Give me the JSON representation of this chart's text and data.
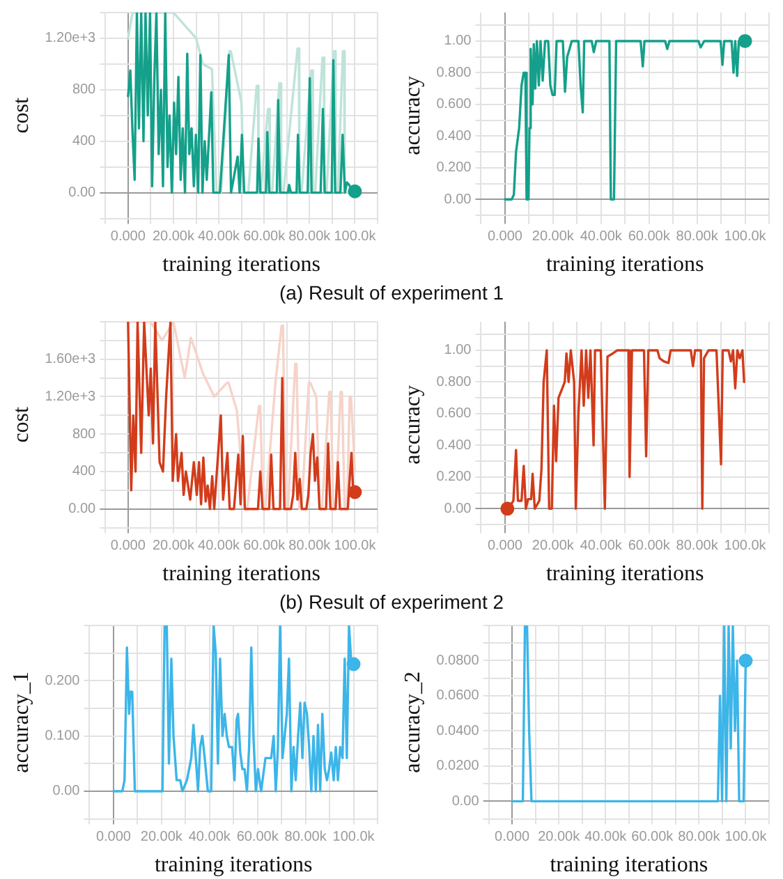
{
  "chart_data": [
    {
      "type": "line",
      "xlabel": "training iterations",
      "ylabel": "cost",
      "annotations": [
        "(a) Result of experiment 1"
      ],
      "grid": true,
      "xlim": [
        -10000,
        110000
      ],
      "xticks": [
        {
          "value": -10000,
          "label": null
        },
        {
          "value": 0,
          "label": "0.000"
        },
        {
          "value": 10000,
          "label": null
        },
        {
          "value": 20000,
          "label": "20.00k"
        },
        {
          "value": 30000,
          "label": null
        },
        {
          "value": 40000,
          "label": "40.00k"
        },
        {
          "value": 50000,
          "label": null
        },
        {
          "value": 60000,
          "label": "60.00k"
        },
        {
          "value": 70000,
          "label": null
        },
        {
          "value": 80000,
          "label": "80.00k"
        },
        {
          "value": 90000,
          "label": null
        },
        {
          "value": 100000,
          "label": "100.0k"
        },
        {
          "value": 110000,
          "label": null
        }
      ],
      "ylim": [
        -200,
        1400
      ],
      "yticks": [
        {
          "value": -200,
          "label": null
        },
        {
          "value": 0,
          "label": "0.00"
        },
        {
          "value": 200,
          "label": null
        },
        {
          "value": 400,
          "label": "400"
        },
        {
          "value": 600,
          "label": null
        },
        {
          "value": 800,
          "label": "800"
        },
        {
          "value": 1000,
          "label": null
        },
        {
          "value": 1200,
          "label": "1.20e+3"
        },
        {
          "value": 1400,
          "label": null
        }
      ],
      "series": [
        {
          "type": "line",
          "color": "#bfe3da",
          "x": [
            0,
            2000,
            5000,
            10000,
            15000,
            20000,
            25000,
            30000,
            33000,
            37000,
            39000,
            41000,
            44700,
            45300,
            50000,
            51000,
            53000,
            56700,
            57300,
            57500,
            58500,
            61700,
            62300,
            62500,
            63500,
            66700,
            67300,
            67500,
            68500,
            74700,
            75300,
            75500,
            76500,
            80700,
            81300,
            81500,
            82500,
            85700,
            86300,
            86500,
            87500,
            90700,
            91300,
            91500,
            92500,
            94700,
            95300,
            95500,
            96500,
            100000
          ],
          "values": [
            1200,
            1400,
            1400,
            1400,
            1400,
            1400,
            1300,
            1200,
            1000,
            960,
            0,
            0,
            1100,
            1100,
            700,
            0,
            0,
            830,
            830,
            0,
            0,
            650,
            650,
            0,
            0,
            850,
            850,
            0,
            0,
            1120,
            1120,
            0,
            0,
            950,
            950,
            0,
            0,
            1050,
            1050,
            0,
            0,
            1100,
            1100,
            0,
            0,
            1100,
            1100,
            0,
            0,
            10
          ]
        },
        {
          "type": "line",
          "color": "#14a08a",
          "x": [
            0,
            1000,
            1900,
            2900,
            3900,
            4800,
            5800,
            6800,
            7700,
            8700,
            9700,
            10600,
            11600,
            12500,
            13500,
            14500,
            15400,
            16400,
            17400,
            18300,
            19300,
            20300,
            21200,
            22200,
            23200,
            24100,
            25100,
            26100,
            27000,
            28000,
            29000,
            29900,
            30900,
            31900,
            32800,
            33800,
            34700,
            36700,
            37600,
            40500,
            44400,
            45400,
            48300,
            49200,
            50200,
            51200,
            56900,
            57500,
            58300,
            60800,
            61400,
            62200,
            65600,
            66200,
            67000,
            70500,
            71000,
            71800,
            74300,
            74900,
            75700,
            79200,
            80100,
            80900,
            84900,
            85900,
            86700,
            89800,
            90500,
            91300,
            93600,
            94600,
            95600,
            96500,
            97500,
            98500,
            100000
          ],
          "values": [
            750,
            950,
            500,
            100,
            1400,
            500,
            1400,
            400,
            1400,
            600,
            1400,
            50,
            900,
            1400,
            300,
            800,
            50,
            1400,
            200,
            600,
            0,
            700,
            300,
            900,
            100,
            500,
            0,
            1080,
            300,
            500,
            50,
            450,
            0,
            1070,
            0,
            400,
            100,
            780,
            0,
            0,
            1070,
            0,
            280,
            0,
            450,
            0,
            0,
            420,
            0,
            0,
            470,
            0,
            0,
            720,
            0,
            0,
            60,
            0,
            0,
            450,
            0,
            0,
            890,
            0,
            0,
            650,
            0,
            0,
            1030,
            0,
            0,
            450,
            0,
            80,
            60,
            20,
            10
          ]
        },
        {
          "type": "scatter",
          "marker": "circle",
          "color": "#14a08a",
          "x": [
            100000
          ],
          "values": [
            10
          ]
        }
      ]
    },
    {
      "type": "line",
      "xlabel": "training iterations",
      "ylabel": "accuracy",
      "grid": true,
      "xlim": [
        -10000,
        110000
      ],
      "xticks": [
        {
          "value": -10000,
          "label": null
        },
        {
          "value": 0,
          "label": "0.000"
        },
        {
          "value": 10000,
          "label": null
        },
        {
          "value": 20000,
          "label": "20.00k"
        },
        {
          "value": 30000,
          "label": null
        },
        {
          "value": 40000,
          "label": "40.00k"
        },
        {
          "value": 50000,
          "label": null
        },
        {
          "value": 60000,
          "label": "60.00k"
        },
        {
          "value": 70000,
          "label": null
        },
        {
          "value": 80000,
          "label": "80.00k"
        },
        {
          "value": 90000,
          "label": null
        },
        {
          "value": 100000,
          "label": "100.0k"
        },
        {
          "value": 110000,
          "label": null
        }
      ],
      "ylim": [
        -0.12,
        1.18
      ],
      "yticks": [
        {
          "value": -0.1,
          "label": null
        },
        {
          "value": 0,
          "label": "0.00"
        },
        {
          "value": 0.1,
          "label": null
        },
        {
          "value": 0.2,
          "label": "0.200"
        },
        {
          "value": 0.3,
          "label": null
        },
        {
          "value": 0.4,
          "label": "0.400"
        },
        {
          "value": 0.5,
          "label": null
        },
        {
          "value": 0.6,
          "label": "0.600"
        },
        {
          "value": 0.7,
          "label": null
        },
        {
          "value": 0.8,
          "label": "0.800"
        },
        {
          "value": 0.9,
          "label": null
        },
        {
          "value": 1,
          "label": "1.00"
        },
        {
          "value": 1.1,
          "label": null
        }
      ],
      "series": [
        {
          "type": "line",
          "color": "#14a08a",
          "x": [
            0,
            2800,
            3700,
            4600,
            5900,
            6900,
            7800,
            8500,
            9000,
            9800,
            10200,
            10700,
            11500,
            12000,
            12600,
            13300,
            14100,
            14800,
            15700,
            16700,
            18000,
            18900,
            19800,
            20700,
            21500,
            24100,
            25000,
            25900,
            26900,
            27800,
            30600,
            31500,
            32400,
            33000,
            36100,
            37000,
            38000,
            43500,
            44100,
            45400,
            46300,
            56500,
            57400,
            58100,
            66700,
            67600,
            68500,
            80600,
            81500,
            83000,
            89800,
            90600,
            91300,
            94400,
            95200,
            95900,
            96700,
            97400,
            98100,
            100000
          ],
          "values": [
            0,
            0,
            0.03,
            0.3,
            0.45,
            0.72,
            0.8,
            0.8,
            0,
            0,
            0.45,
            0.95,
            0.6,
            0.98,
            0.7,
            1,
            0.72,
            1,
            0.75,
            1,
            1,
            0.72,
            0.66,
            0.66,
            1,
            1,
            0.68,
            0.9,
            0.95,
            1,
            1,
            0.72,
            0.55,
            1,
            1,
            0.93,
            1,
            1,
            0,
            0,
            1,
            1,
            0.84,
            1,
            1,
            0.95,
            1,
            1,
            0.96,
            1,
            1,
            0.85,
            1,
            1,
            0.8,
            1,
            0.78,
            1,
            0.98,
            1
          ]
        },
        {
          "type": "scatter",
          "marker": "circle",
          "color": "#14a08a",
          "x": [
            100000
          ],
          "values": [
            1
          ]
        }
      ]
    },
    {
      "type": "line",
      "xlabel": "training iterations",
      "ylabel": "cost",
      "annotations": [
        "(b) Result of experiment 2"
      ],
      "grid": true,
      "xlim": [
        -10000,
        110000
      ],
      "xticks": [
        {
          "value": -10000,
          "label": null
        },
        {
          "value": 0,
          "label": "0.000"
        },
        {
          "value": 10000,
          "label": null
        },
        {
          "value": 20000,
          "label": "20.00k"
        },
        {
          "value": 30000,
          "label": null
        },
        {
          "value": 40000,
          "label": "40.00k"
        },
        {
          "value": 50000,
          "label": null
        },
        {
          "value": 60000,
          "label": "60.00k"
        },
        {
          "value": 70000,
          "label": null
        },
        {
          "value": 80000,
          "label": "80.00k"
        },
        {
          "value": 90000,
          "label": null
        },
        {
          "value": 100000,
          "label": "100.0k"
        },
        {
          "value": 110000,
          "label": null
        }
      ],
      "ylim": [
        -200,
        2000
      ],
      "yticks": [
        {
          "value": -200,
          "label": null
        },
        {
          "value": 0,
          "label": "0.00"
        },
        {
          "value": 200,
          "label": null
        },
        {
          "value": 400,
          "label": "400"
        },
        {
          "value": 600,
          "label": null
        },
        {
          "value": 800,
          "label": "800"
        },
        {
          "value": 1000,
          "label": null
        },
        {
          "value": 1200,
          "label": "1.20e+3"
        },
        {
          "value": 1400,
          "label": null
        },
        {
          "value": 1600,
          "label": "1.60e+3"
        },
        {
          "value": 1800,
          "label": null
        },
        {
          "value": 2000,
          "label": null
        }
      ],
      "series": [
        {
          "type": "line",
          "color": "#f6d3c9",
          "x": [
            0,
            5000,
            10000,
            15000,
            20000,
            25000,
            27700,
            28300,
            33000,
            38000,
            43700,
            44300,
            48000,
            51500,
            52500,
            57700,
            58300,
            59500,
            60500,
            65000,
            67700,
            68300,
            69500,
            70500,
            73700,
            74300,
            75500,
            76500,
            79700,
            80300,
            83000,
            84500,
            85500,
            88700,
            89300,
            90500,
            91500,
            93700,
            94300,
            95500,
            96500,
            97700,
            98300,
            100000
          ],
          "values": [
            2000,
            2000,
            2000,
            1800,
            2000,
            1400,
            1830,
            1830,
            1450,
            1200,
            1350,
            1350,
            1050,
            0,
            0,
            1100,
            1100,
            0,
            0,
            1350,
            1960,
            1960,
            0,
            0,
            1550,
            1550,
            0,
            0,
            1350,
            1350,
            1200,
            0,
            0,
            1250,
            1250,
            0,
            0,
            1250,
            1250,
            0,
            0,
            1200,
            1200,
            400
          ]
        },
        {
          "type": "line",
          "color": "#d23c1b",
          "x": [
            0,
            1400,
            2300,
            3300,
            4200,
            5800,
            7100,
            9100,
            10000,
            11000,
            12000,
            13900,
            15400,
            16800,
            18700,
            19700,
            21200,
            22000,
            23600,
            24500,
            25500,
            27400,
            29000,
            30300,
            31300,
            32200,
            33200,
            34200,
            35100,
            36100,
            37100,
            38000,
            40900,
            41900,
            43800,
            44800,
            46700,
            48600,
            49600,
            50600,
            51500,
            57300,
            58300,
            59300,
            62200,
            63100,
            64100,
            67000,
            68000,
            68900,
            71800,
            72800,
            73700,
            74700,
            75700,
            76600,
            78600,
            79500,
            80500,
            81500,
            82400,
            83400,
            84400,
            87300,
            88200,
            89200,
            91500,
            92500,
            93400,
            96900,
            97500,
            98500,
            99200,
            100000
          ],
          "values": [
            2000,
            200,
            1000,
            400,
            2000,
            600,
            2000,
            1000,
            1500,
            700,
            2000,
            500,
            400,
            1200,
            2000,
            300,
            800,
            300,
            600,
            150,
            400,
            100,
            500,
            150,
            500,
            50,
            550,
            80,
            250,
            0,
            350,
            0,
            1000,
            100,
            600,
            0,
            0,
            580,
            50,
            780,
            0,
            0,
            400,
            0,
            0,
            580,
            0,
            0,
            1400,
            0,
            0,
            150,
            600,
            100,
            320,
            0,
            0,
            150,
            600,
            800,
            300,
            550,
            0,
            0,
            700,
            0,
            0,
            500,
            0,
            0,
            250,
            600,
            200,
            180
          ]
        },
        {
          "type": "scatter",
          "marker": "circle",
          "color": "#d23c1b",
          "x": [
            100000
          ],
          "values": [
            180
          ]
        }
      ]
    },
    {
      "type": "line",
      "xlabel": "training iterations",
      "ylabel": "accuracy",
      "grid": true,
      "xlim": [
        -10000,
        110000
      ],
      "xticks": [
        {
          "value": -10000,
          "label": null
        },
        {
          "value": 0,
          "label": "0.000"
        },
        {
          "value": 10000,
          "label": null
        },
        {
          "value": 20000,
          "label": "20.00k"
        },
        {
          "value": 30000,
          "label": null
        },
        {
          "value": 40000,
          "label": "40.00k"
        },
        {
          "value": 50000,
          "label": null
        },
        {
          "value": 60000,
          "label": "60.00k"
        },
        {
          "value": 70000,
          "label": null
        },
        {
          "value": 80000,
          "label": "80.00k"
        },
        {
          "value": 90000,
          "label": null
        },
        {
          "value": 100000,
          "label": "100.0k"
        },
        {
          "value": 110000,
          "label": null
        }
      ],
      "ylim": [
        -0.12,
        1.18
      ],
      "yticks": [
        {
          "value": -0.1,
          "label": null
        },
        {
          "value": 0,
          "label": "0.00"
        },
        {
          "value": 0.1,
          "label": null
        },
        {
          "value": 0.2,
          "label": "0.200"
        },
        {
          "value": 0.3,
          "label": null
        },
        {
          "value": 0.4,
          "label": "0.400"
        },
        {
          "value": 0.5,
          "label": null
        },
        {
          "value": 0.6,
          "label": "0.600"
        },
        {
          "value": 0.7,
          "label": null
        },
        {
          "value": 0.8,
          "label": "0.800"
        },
        {
          "value": 0.9,
          "label": null
        },
        {
          "value": 1,
          "label": "1.00"
        },
        {
          "value": 1.1,
          "label": null
        }
      ],
      "series": [
        {
          "type": "line",
          "color": "#d23c1b",
          "x": [
            0,
            2200,
            3500,
            4600,
            5400,
            6900,
            7800,
            8700,
            9600,
            10900,
            11500,
            12400,
            14300,
            15200,
            16100,
            17400,
            18400,
            19500,
            20400,
            21300,
            22300,
            23600,
            24900,
            25600,
            26500,
            27400,
            28800,
            29500,
            30600,
            31900,
            32800,
            33800,
            34700,
            35600,
            36900,
            37500,
            39900,
            41600,
            42700,
            44900,
            46800,
            51400,
            51900,
            52900,
            57900,
            58800,
            59700,
            63500,
            64400,
            66200,
            68100,
            69000,
            77400,
            78300,
            79200,
            81600,
            82200,
            82900,
            84800,
            88100,
            90000,
            90700,
            93100,
            94100,
            95000,
            95900,
            96800,
            97800,
            98900,
            99600
          ],
          "values": [
            0,
            0.02,
            0.05,
            0.37,
            0.05,
            0.05,
            0.27,
            0,
            0.06,
            0.06,
            0.22,
            0,
            0.05,
            0.25,
            0.8,
            1,
            0,
            0,
            0.65,
            0.3,
            0.7,
            0.75,
            0.8,
            0.98,
            0.8,
            1,
            0.8,
            0,
            0.6,
            1,
            0.65,
            1,
            0.7,
            1,
            0.4,
            1,
            1,
            0,
            0.96,
            0.98,
            1,
            1,
            0.2,
            1,
            1,
            0.33,
            1,
            1,
            0.95,
            0.93,
            0.92,
            1,
            1,
            0.9,
            1,
            1,
            0,
            0.95,
            1,
            1,
            0.28,
            1,
            1,
            0.93,
            1,
            0.76,
            1,
            0.95,
            1,
            0.8
          ]
        },
        {
          "type": "scatter",
          "marker": "circle",
          "color": "#d23c1b",
          "x": [
            1000
          ],
          "values": [
            0
          ]
        }
      ]
    },
    {
      "type": "line",
      "xlabel": "training iterations",
      "ylabel": "accuracy_1",
      "grid": true,
      "xlim": [
        -10000,
        110000
      ],
      "xticks": [
        {
          "value": -10000,
          "label": null
        },
        {
          "value": 0,
          "label": "0.000"
        },
        {
          "value": 10000,
          "label": null
        },
        {
          "value": 20000,
          "label": "20.00k"
        },
        {
          "value": 30000,
          "label": null
        },
        {
          "value": 40000,
          "label": "40.00k"
        },
        {
          "value": 50000,
          "label": null
        },
        {
          "value": 60000,
          "label": "60.00k"
        },
        {
          "value": 70000,
          "label": null
        },
        {
          "value": 80000,
          "label": "80.00k"
        },
        {
          "value": 90000,
          "label": null
        },
        {
          "value": 100000,
          "label": "100.0k"
        },
        {
          "value": 110000,
          "label": null
        }
      ],
      "ylim": [
        -0.05,
        0.3
      ],
      "yticks": [
        {
          "value": -0.05,
          "label": null
        },
        {
          "value": 0,
          "label": "0.00"
        },
        {
          "value": 0.05,
          "label": null
        },
        {
          "value": 0.1,
          "label": "0.100"
        },
        {
          "value": 0.15,
          "label": null
        },
        {
          "value": 0.2,
          "label": "0.200"
        },
        {
          "value": 0.25,
          "label": null
        },
        {
          "value": 0.3,
          "label": null
        }
      ],
      "series": [
        {
          "type": "line",
          "color": "#3cb5e9",
          "x": [
            0,
            3700,
            4600,
            5600,
            6500,
            7000,
            7800,
            8900,
            11100,
            20400,
            21300,
            22200,
            23100,
            24100,
            25000,
            26300,
            27800,
            28700,
            30600,
            32400,
            33300,
            34300,
            35200,
            36100,
            37000,
            38000,
            39300,
            40700,
            41700,
            42600,
            43500,
            44400,
            45400,
            46300,
            47200,
            48100,
            49400,
            50400,
            51300,
            51900,
            52800,
            53700,
            54600,
            55600,
            56500,
            57400,
            58300,
            59300,
            60200,
            61500,
            63300,
            65700,
            66700,
            67600,
            68500,
            69400,
            70400,
            71300,
            72200,
            73100,
            74100,
            75000,
            75900,
            76900,
            77800,
            78700,
            79600,
            80600,
            81500,
            82400,
            83300,
            84300,
            85200,
            86100,
            87000,
            88000,
            88900,
            89800,
            90700,
            91700,
            92600,
            93500,
            94400,
            95400,
            96300,
            97200,
            98100,
            99100,
            100000
          ],
          "values": [
            0,
            0,
            0.02,
            0.26,
            0.14,
            0.18,
            0.18,
            0,
            0,
            0,
            0.3,
            0.3,
            0.05,
            0.24,
            0.1,
            0.02,
            0.02,
            0,
            0.02,
            0.06,
            0.12,
            0.06,
            0,
            0.08,
            0.1,
            0.06,
            0,
            0,
            0.3,
            0.25,
            0.05,
            0.24,
            0.1,
            0.14,
            0.1,
            0.08,
            0.08,
            0.02,
            0.13,
            0.14,
            0.07,
            0.04,
            0.04,
            0,
            0.08,
            0.26,
            0.1,
            0,
            0.04,
            0,
            0.06,
            0.06,
            0.1,
            0,
            0.08,
            0.3,
            0.06,
            0.1,
            0.14,
            0.24,
            0,
            0.08,
            0.02,
            0.1,
            0.16,
            0.06,
            0.16,
            0.14,
            0.08,
            0,
            0.1,
            0,
            0.12,
            0,
            0.14,
            0.04,
            0.02,
            0.04,
            0.07,
            0.02,
            0.08,
            0.02,
            0.08,
            0.06,
            0.24,
            0.06,
            0.3,
            0.23,
            0.23
          ]
        },
        {
          "type": "scatter",
          "marker": "circle",
          "color": "#3cb5e9",
          "x": [
            100000
          ],
          "values": [
            0.23
          ]
        }
      ]
    },
    {
      "type": "line",
      "xlabel": "training iterations",
      "ylabel": "accuracy_2",
      "grid": true,
      "xlim": [
        -10000,
        110000
      ],
      "xticks": [
        {
          "value": -10000,
          "label": null
        },
        {
          "value": 0,
          "label": "0.000"
        },
        {
          "value": 10000,
          "label": null
        },
        {
          "value": 20000,
          "label": "20.00k"
        },
        {
          "value": 30000,
          "label": null
        },
        {
          "value": 40000,
          "label": "40.00k"
        },
        {
          "value": 50000,
          "label": null
        },
        {
          "value": 60000,
          "label": "60.00k"
        },
        {
          "value": 70000,
          "label": null
        },
        {
          "value": 80000,
          "label": "80.00k"
        },
        {
          "value": 90000,
          "label": null
        },
        {
          "value": 100000,
          "label": "100.0k"
        },
        {
          "value": 110000,
          "label": null
        }
      ],
      "ylim": [
        -0.01,
        0.1
      ],
      "yticks": [
        {
          "value": -0.01,
          "label": null
        },
        {
          "value": 0,
          "label": "0.00"
        },
        {
          "value": 0.01,
          "label": null
        },
        {
          "value": 0.02,
          "label": "0.0200"
        },
        {
          "value": 0.03,
          "label": null
        },
        {
          "value": 0.04,
          "label": "0.0400"
        },
        {
          "value": 0.05,
          "label": null
        },
        {
          "value": 0.06,
          "label": "0.0600"
        },
        {
          "value": 0.07,
          "label": null
        },
        {
          "value": 0.08,
          "label": "0.0800"
        },
        {
          "value": 0.09,
          "label": null
        },
        {
          "value": 0.1,
          "label": null
        }
      ],
      "series": [
        {
          "type": "line",
          "color": "#3cb5e9",
          "x": [
            0,
            4600,
            5500,
            6400,
            7300,
            8300,
            88100,
            89000,
            89900,
            90800,
            91700,
            92700,
            93600,
            94500,
            95400,
            96300,
            97200,
            99100,
            100000
          ],
          "values": [
            0,
            0,
            0.1,
            0.1,
            0.04,
            0,
            0,
            0.06,
            0,
            0.1,
            0,
            0.1,
            0.03,
            0.1,
            0.04,
            0.08,
            0,
            0,
            0.08
          ]
        },
        {
          "type": "scatter",
          "marker": "circle",
          "color": "#3cb5e9",
          "x": [
            100000
          ],
          "values": [
            0.08
          ]
        }
      ]
    }
  ]
}
